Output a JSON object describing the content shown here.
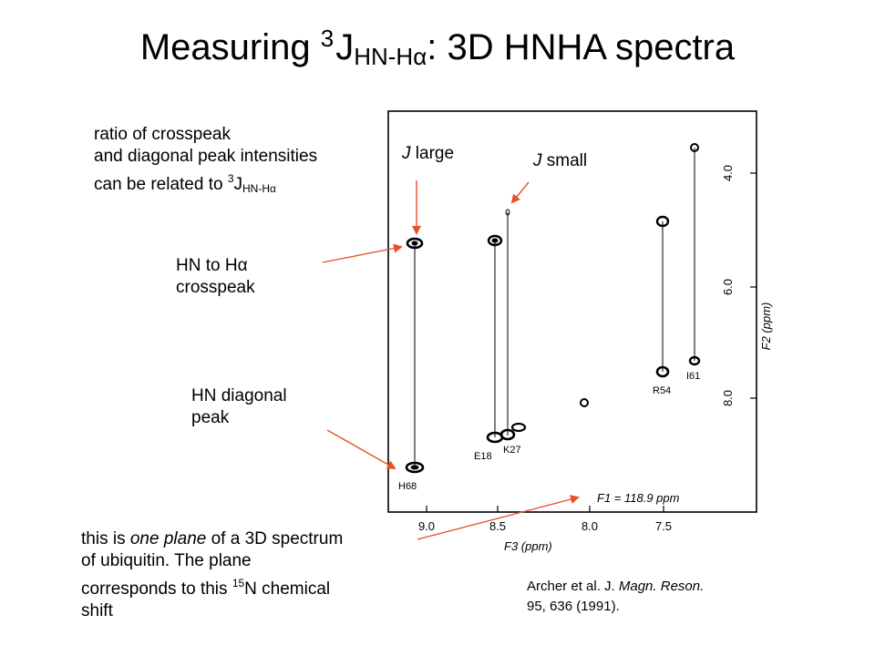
{
  "title": {
    "prefix": "Measuring ",
    "sup": "3",
    "J": "J",
    "sub": "HN-Hα",
    "suffix": ": 3D HNHA spectra"
  },
  "labels": {
    "ratio_line1": "ratio of crosspeak",
    "ratio_line2": "and diagonal peak intensities",
    "ratio_line3_prefix": "can be related to ",
    "ratio_sup": "3",
    "ratio_J": "J",
    "ratio_sub": "HN-Hα",
    "j_large_j": "J",
    "j_large_word": " large",
    "j_small_j": "J",
    "j_small_word": " small",
    "crosspeak_line1": "HN to Hα",
    "crosspeak_line2": "crosspeak",
    "diagonal_line1": "HN diagonal",
    "diagonal_line2": "peak",
    "plane_line1_a": "this is ",
    "plane_line1_em": "one plane",
    "plane_line1_b": " of a 3D spectrum",
    "plane_line2": "of ubiquitin.  The plane",
    "plane_line3_a": "corresponds  to  this ",
    "plane_sup": "15",
    "plane_line3_b": "N chemical",
    "plane_line4": "shift"
  },
  "citation": {
    "line1_a": "Archer et al. J. ",
    "line1_em": "Magn. Reson.",
    "line2": "95, 636 (1991)."
  },
  "spectrum": {
    "f3_ticks": [
      "9.0",
      "8.5",
      "8.0",
      "7.5"
    ],
    "f3_label": "F3 (ppm)",
    "f2_ticks": [
      "4.0",
      "6.0",
      "8.0"
    ],
    "f2_label": "F2 (ppm)",
    "f1_label": "F1 = 118.9 ppm",
    "peak_labels": [
      "H68",
      "E18",
      "K27",
      "R54",
      "I61"
    ]
  },
  "colors": {
    "arrow": "#e8502a",
    "ink": "#000000"
  }
}
